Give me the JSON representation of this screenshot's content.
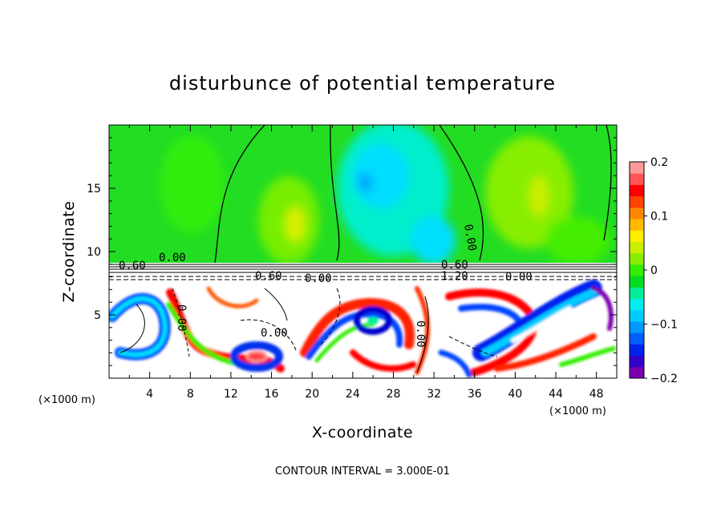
{
  "chart_data": {
    "type": "heatmap",
    "title": "disturbunce of potential temperature",
    "xlabel": "X-coordinate",
    "ylabel": "Z-coordinate",
    "x_unit": "(×1000 m)",
    "y_unit": "(×1000 m)",
    "xlim": [
      0,
      50
    ],
    "ylim": [
      0,
      20
    ],
    "x_ticks": [
      4,
      8,
      12,
      16,
      20,
      24,
      28,
      32,
      36,
      40,
      44,
      48
    ],
    "y_ticks": [
      5,
      10,
      15
    ],
    "colorbar": {
      "range": [
        -0.2,
        0.2
      ],
      "tick_values": [
        0.2,
        0.1,
        0,
        -0.1,
        -0.2
      ],
      "tick_labels": [
        "0.2",
        "0.1",
        "0",
        "−0.1",
        "−0.2"
      ],
      "colors": [
        "#7a00b0",
        "#3300cc",
        "#0022ee",
        "#0060ff",
        "#0099ff",
        "#00ccff",
        "#00eeee",
        "#00ee99",
        "#00dd22",
        "#33ee00",
        "#88ee00",
        "#ccee00",
        "#ffee00",
        "#ffbb00",
        "#ff8800",
        "#ff4400",
        "#ff0000",
        "#ff5555",
        "#ff9999"
      ]
    },
    "contour_labels": [
      "0.00",
      "0.00",
      "0.60",
      "0.00",
      "0.00",
      "0.60",
      "0.60",
      "1.20",
      "0.00",
      "0.00",
      "0.00"
    ],
    "contour_interval": "CONTOUR INTERVAL = 3.000E-01"
  }
}
